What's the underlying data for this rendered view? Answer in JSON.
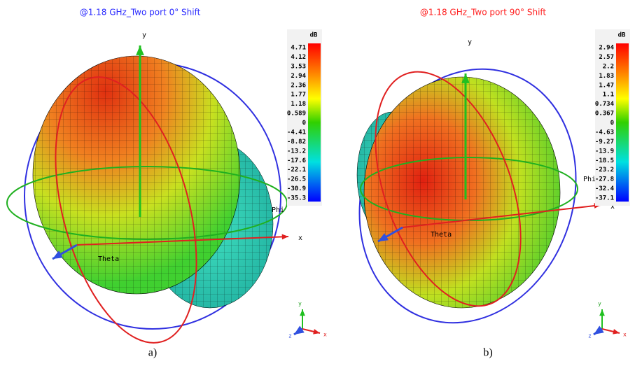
{
  "panels": [
    {
      "title": "@1.18 GHz_Two port 0° Shift",
      "colorbar": {
        "unit": "dB",
        "labels": [
          "4.71",
          "4.12",
          "3.53",
          "2.94",
          "2.36",
          "1.77",
          "1.18",
          "0.589",
          "0",
          "-4.41",
          "-8.82",
          "-13.2",
          "-17.6",
          "-22.1",
          "-26.5",
          "-30.9",
          "-35.3"
        ]
      },
      "axes": {
        "y": "y",
        "x": "x",
        "phi": "Phi",
        "theta": "Theta"
      },
      "triad": {
        "y": "y",
        "x": "x",
        "z": "z"
      },
      "caption": "a)"
    },
    {
      "title": "@1.18 GHz_Two port 90° Shift",
      "colorbar": {
        "unit": "dB",
        "labels": [
          "2.94",
          "2.57",
          "2.2",
          "1.83",
          "1.47",
          "1.1",
          "0.734",
          "0.367",
          "0",
          "-4.63",
          "-9.27",
          "-13.9",
          "-18.5",
          "-23.2",
          "-27.8",
          "-32.4",
          "-37.1"
        ]
      },
      "axes": {
        "y": "y",
        "x": "x",
        "phi": "Phi",
        "theta": "Theta"
      },
      "triad": {
        "y": "y",
        "x": "x",
        "z": "z"
      },
      "caption": "b)"
    }
  ]
}
